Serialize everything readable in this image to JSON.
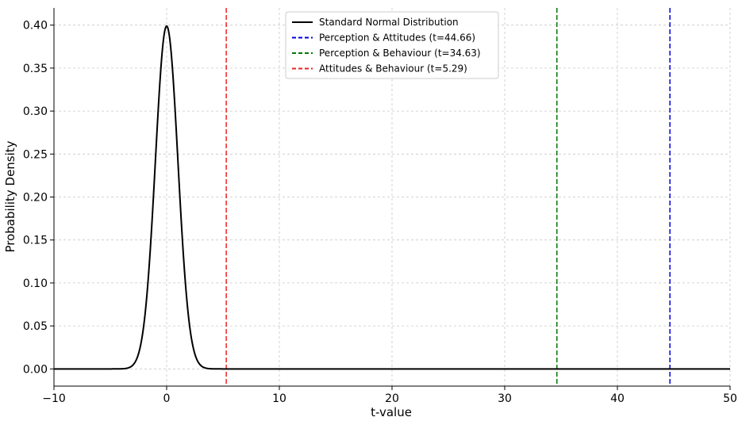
{
  "chart_data": {
    "type": "line",
    "title": "",
    "xlabel": "t-value",
    "ylabel": "Probability Density",
    "xlim": [
      -10,
      50
    ],
    "ylim": [
      -0.02,
      0.42
    ],
    "grid": true,
    "legend_position": "top-center",
    "x_ticks": [
      -10,
      0,
      10,
      20,
      30,
      40,
      50
    ],
    "x_tick_labels": [
      "−10",
      "0",
      "10",
      "20",
      "30",
      "40",
      "50"
    ],
    "y_ticks": [
      0.0,
      0.05,
      0.1,
      0.15,
      0.2,
      0.25,
      0.3,
      0.35,
      0.4
    ],
    "y_tick_labels": [
      "0.00",
      "0.05",
      "0.10",
      "0.15",
      "0.20",
      "0.25",
      "0.30",
      "0.35",
      "0.40"
    ],
    "curve": {
      "name": "Standard Normal Distribution",
      "color": "#000000",
      "distribution": "standard normal",
      "mean": 0,
      "sd": 1
    },
    "vlines": [
      {
        "name": "Perception & Attitudes (t=44.66)",
        "x": 44.66,
        "color": "#0000dd"
      },
      {
        "name": "Perception & Behaviour (t=34.63)",
        "x": 34.63,
        "color": "#007700"
      },
      {
        "name": "Attitudes & Behaviour (t=5.29)",
        "x": 5.29,
        "color": "#ee2222"
      }
    ]
  }
}
